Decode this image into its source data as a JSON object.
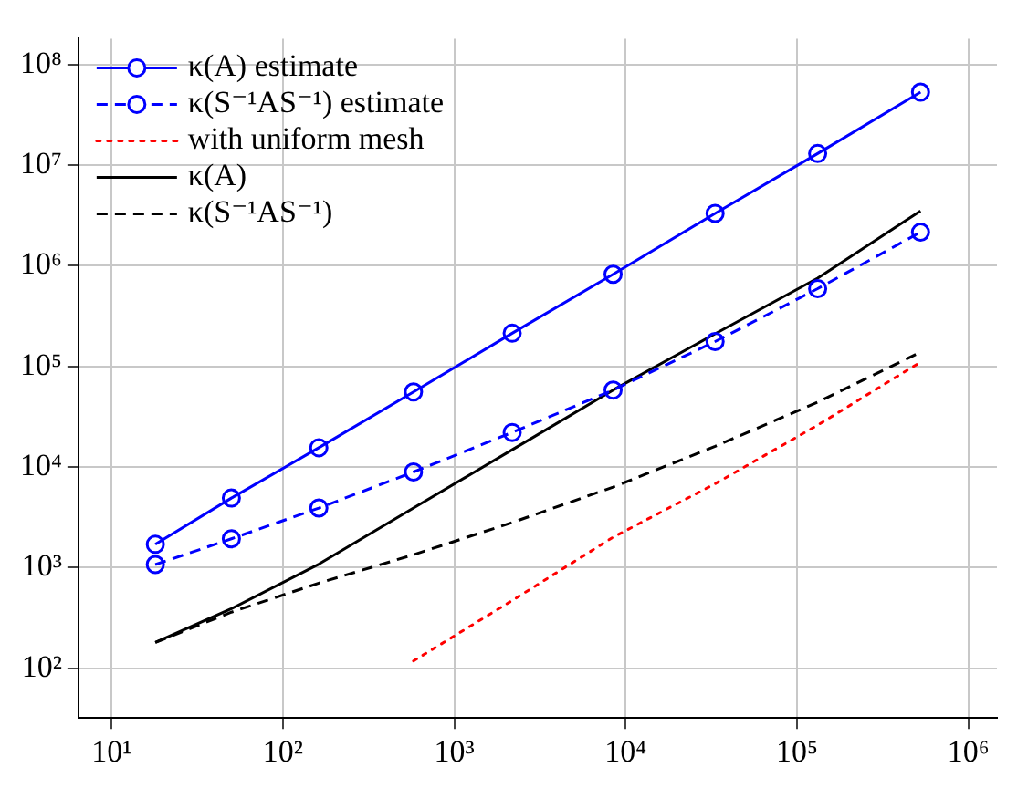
{
  "chart_data": {
    "type": "line",
    "log": "xy",
    "grid": true,
    "legend": "top left",
    "xlim": [
      6.4,
      1470000
    ],
    "ylim": [
      32,
      180000000
    ],
    "xticks": [
      {
        "value": 10,
        "label": "10¹"
      },
      {
        "value": 100,
        "label": "10²"
      },
      {
        "value": 1000,
        "label": "10³"
      },
      {
        "value": 10000,
        "label": "10⁴"
      },
      {
        "value": 100000,
        "label": "10⁵"
      },
      {
        "value": 1000000,
        "label": "10⁶"
      }
    ],
    "yticks": [
      {
        "value": 100,
        "label": "10²"
      },
      {
        "value": 1000,
        "label": "10³"
      },
      {
        "value": 10000,
        "label": "10⁴"
      },
      {
        "value": 100000,
        "label": "10⁵"
      },
      {
        "value": 1000000,
        "label": "10⁶"
      },
      {
        "value": 10000000,
        "label": "10⁷"
      },
      {
        "value": 100000000,
        "label": "10⁸"
      }
    ],
    "series": [
      {
        "name": "κ(A) estimate",
        "color": "#0000ff",
        "marker": "circle",
        "line_style": "solid",
        "x": [
          18,
          50,
          162,
          578,
          2178,
          8450,
          33282,
          132098,
          526338
        ],
        "values": [
          1700,
          4900,
          15500,
          55600,
          213000,
          820000,
          3300000,
          13000000,
          53000000
        ]
      },
      {
        "name": "κ(S⁻¹AS⁻¹) estimate",
        "color": "#0000ff",
        "marker": "circle",
        "line_style": "dashed",
        "x": [
          18,
          50,
          162,
          578,
          2178,
          8450,
          33282,
          132098,
          526338
        ],
        "values": [
          1070,
          1930,
          3900,
          8900,
          22000,
          58000,
          176000,
          590000,
          2150000
        ]
      },
      {
        "name": "with uniform mesh",
        "color": "#ff0000",
        "marker": "none",
        "line_style": "dotted",
        "x": [
          578,
          2178,
          8450,
          33282,
          132098,
          526338
        ],
        "values": [
          118,
          470,
          2000,
          6800,
          26000,
          110000
        ]
      },
      {
        "name": "κ(A)",
        "color": "#000000",
        "marker": "none",
        "line_style": "solid",
        "x": [
          18,
          50,
          162,
          578,
          2178,
          8450,
          33282,
          132098,
          526338
        ],
        "values": [
          180,
          390,
          1080,
          3900,
          14800,
          58000,
          210000,
          750000,
          3500000
        ]
      },
      {
        "name": "κ(S⁻¹AS⁻¹)",
        "color": "#000000",
        "marker": "none",
        "line_style": "dashed",
        "x": [
          18,
          50,
          162,
          578,
          2178,
          8450,
          33282,
          132098,
          526338
        ],
        "values": [
          180,
          360,
          700,
          1340,
          2800,
          6300,
          16000,
          44000,
          138000
        ]
      }
    ]
  }
}
